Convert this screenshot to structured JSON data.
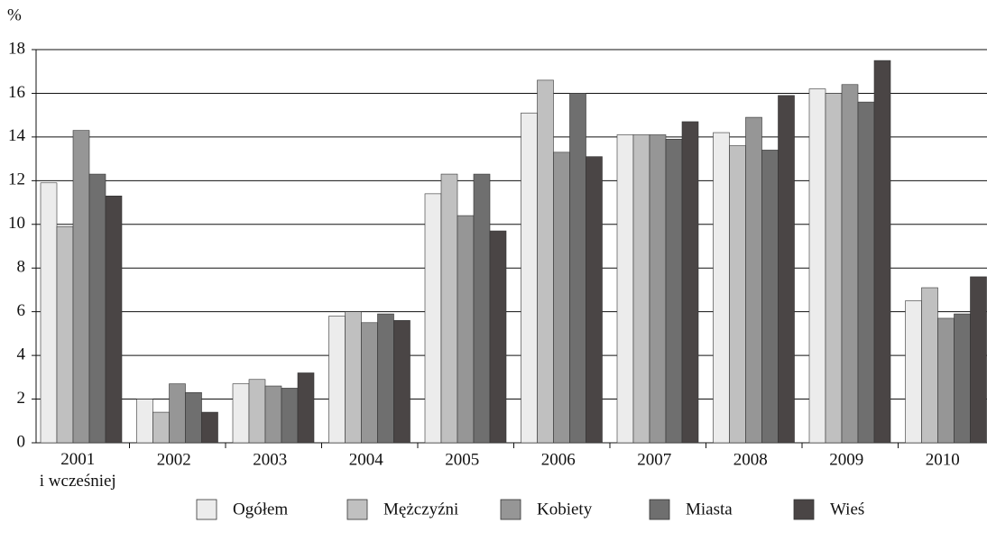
{
  "chart_data": {
    "type": "bar",
    "y_label": "%",
    "categories": [
      "2001\ni wcześniej",
      "2002",
      "2003",
      "2004",
      "2005",
      "2006",
      "2007",
      "2008",
      "2009",
      "2010"
    ],
    "series": [
      {
        "name": "Ogółem",
        "color": "#ececec",
        "values": [
          11.9,
          2.0,
          2.7,
          5.8,
          11.4,
          15.1,
          14.1,
          14.2,
          16.2,
          6.5
        ]
      },
      {
        "name": "Mężczyźni",
        "color": "#c0c0c0",
        "values": [
          9.9,
          1.4,
          2.9,
          6.0,
          12.3,
          16.6,
          14.1,
          13.6,
          16.0,
          7.1
        ]
      },
      {
        "name": "Kobiety",
        "color": "#969696",
        "values": [
          14.3,
          2.7,
          2.6,
          5.5,
          10.4,
          13.3,
          14.1,
          14.9,
          16.4,
          5.7
        ]
      },
      {
        "name": "Miasta",
        "color": "#6f6f6f",
        "values": [
          12.3,
          2.3,
          2.5,
          5.9,
          12.3,
          16.0,
          13.9,
          13.4,
          15.6,
          5.9
        ]
      },
      {
        "name": "Wieś",
        "color": "#4a4545",
        "values": [
          11.3,
          1.4,
          3.2,
          5.6,
          9.7,
          13.1,
          14.7,
          15.9,
          17.5,
          7.6
        ]
      }
    ],
    "ylim": [
      0,
      18
    ],
    "yticks": [
      0,
      2,
      4,
      6,
      8,
      10,
      12,
      14,
      16,
      18
    ],
    "grid": true,
    "legend": "bottom"
  }
}
